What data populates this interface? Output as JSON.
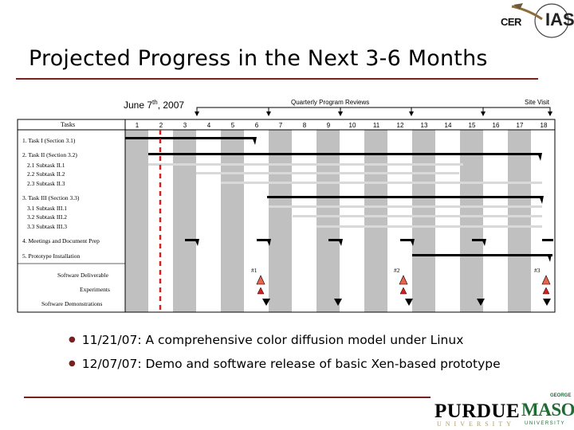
{
  "header": {
    "title": "Projected Progress in the Next 3-6 Months",
    "logo_text": "CER",
    "logo_suffix": "IAS"
  },
  "gantt": {
    "date_label": "June 7",
    "date_sup": "th",
    "date_year": ", 2007",
    "reviews_label": "Quarterly Program Reviews",
    "site_visit_label": "Site Visit",
    "tasks_header": "Tasks",
    "months": [
      "1",
      "2",
      "3",
      "4",
      "5",
      "6",
      "7",
      "8",
      "9",
      "10",
      "11",
      "12",
      "13",
      "14",
      "15",
      "16",
      "17",
      "18"
    ],
    "task_labels": [
      "1. Task I (Section 3.1)",
      "2. Task II (Section 3.2)",
      "2.1 Subtask II.1",
      "2.2 Subtask II.2",
      "2.3 Subtask II.3",
      "3. Task III (Section 3.3)",
      "3.1 Subtask III.1",
      "3.2 Subtask III.2",
      "3.3 Subtask III.3",
      "4. Meetings and Document Prep",
      "5. Prototype Installation",
      "Software Deliverable",
      "Experiments",
      "Software Demonstrations"
    ],
    "deliverables": [
      "#1",
      "#2",
      "#3"
    ]
  },
  "bullets": [
    "11/21/07: A comprehensive color diffusion model under Linux",
    "12/07/07: Demo and software release of basic Xen-based prototype"
  ],
  "footer": {
    "purdue": "PURDUE",
    "purdue_sub": "UNIVERSITY",
    "mason_top": "GEORGE",
    "mason": "MASON",
    "mason_sub": "UNIVERSITY"
  },
  "colors": {
    "accent": "#7b1f1f",
    "column_shade": "#c0c0c0",
    "current_marker": "#d42020",
    "deliverable_marker": "#e8644b"
  }
}
